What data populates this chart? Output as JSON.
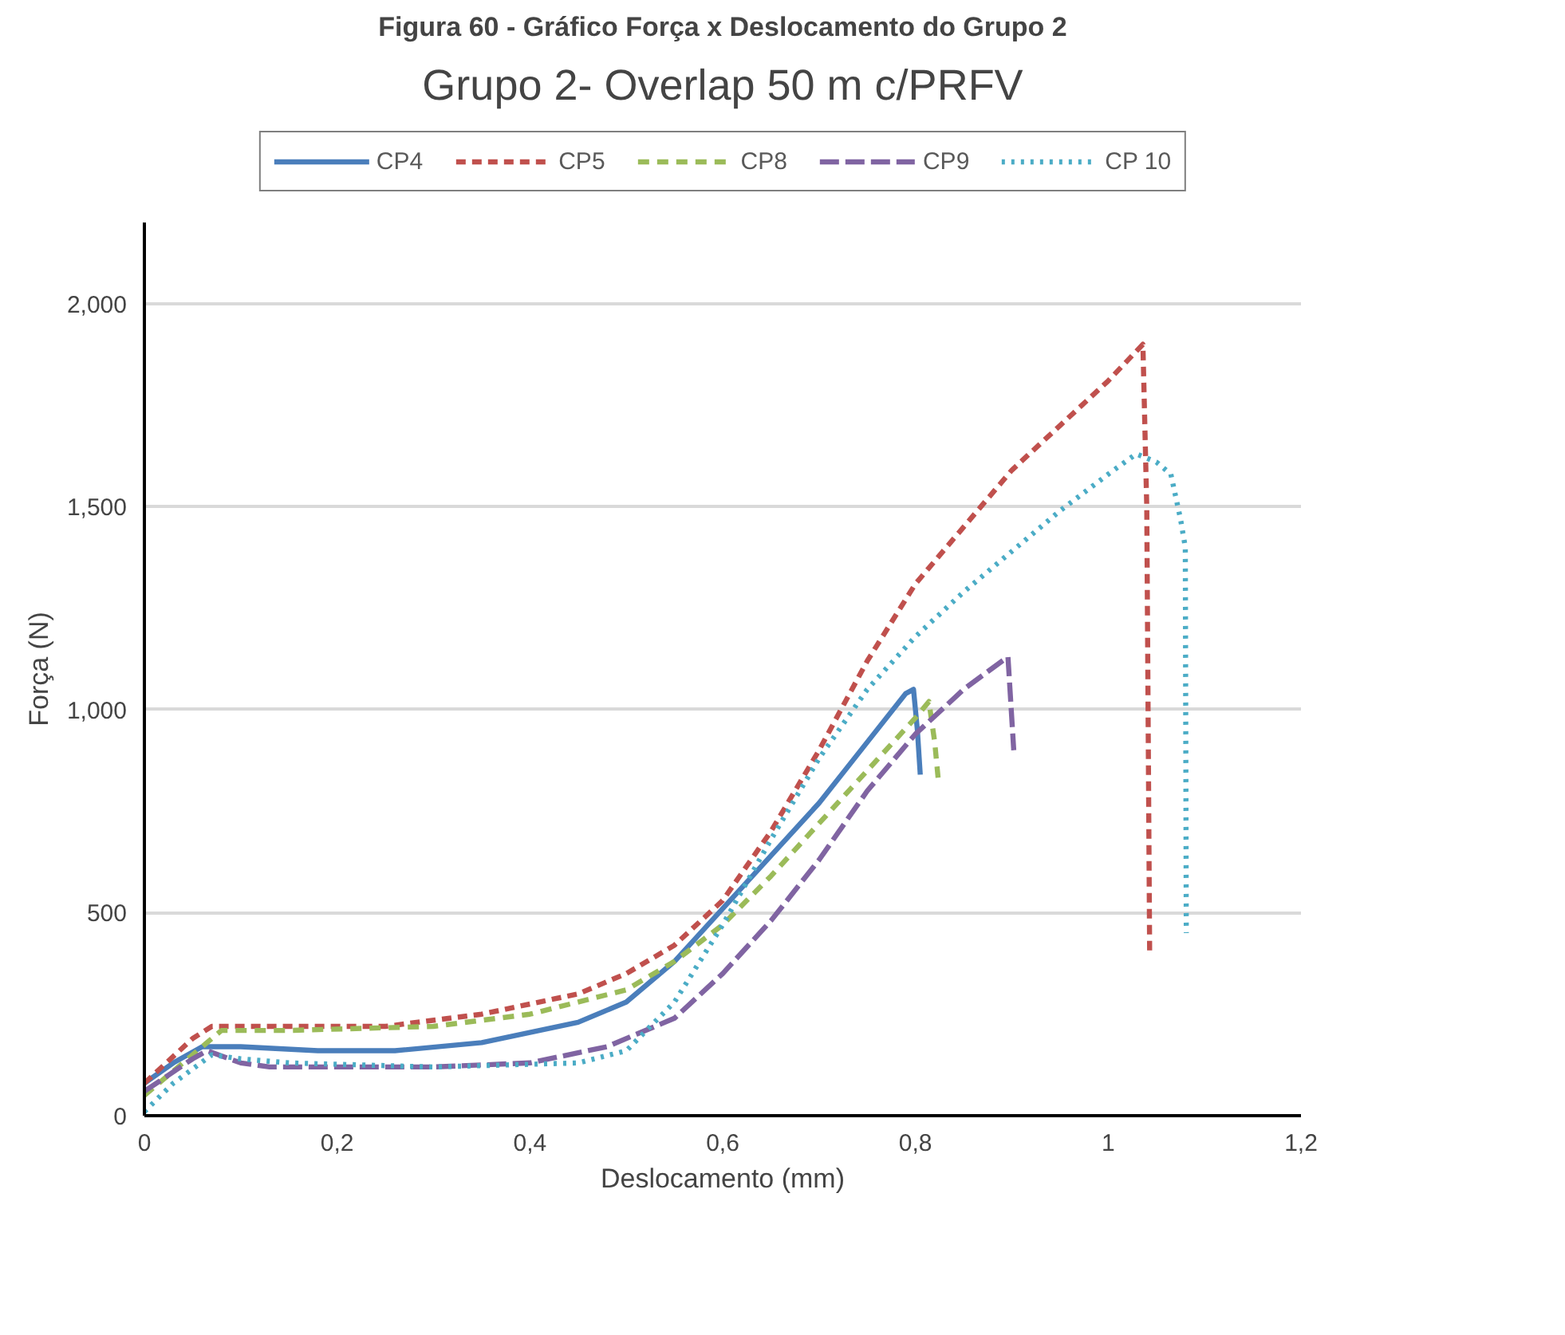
{
  "chart_data": {
    "type": "line",
    "title": "Grupo 2- Overlap 50 m c/PRFV",
    "annotations": [
      "Figura 60 - Gráfico Força x Deslocamento do Grupo 2"
    ],
    "xlabel": "Deslocamento (mm)",
    "ylabel": "Força (N)",
    "xlim": [
      0,
      1.2
    ],
    "xticks": [
      0,
      {
        "value": 0.2,
        "label": "0,2"
      },
      {
        "value": 0.4,
        "label": "0,4"
      },
      {
        "value": 0.6,
        "label": "0,6"
      },
      {
        "value": 0.8,
        "label": "0,8"
      },
      1,
      {
        "value": 1.2,
        "label": "1,2"
      }
    ],
    "ylim": [
      0,
      2200
    ],
    "yticks": [
      0,
      500,
      {
        "value": 1000,
        "label": "1,000"
      },
      {
        "value": 1500,
        "label": "1,500"
      },
      {
        "value": 2000,
        "label": "2,000"
      }
    ],
    "grid": "y",
    "legend": "top",
    "marker": "none",
    "series": [
      {
        "name": "CP4",
        "color": "#4a7ebb",
        "line_style": "solid",
        "x": [
          0,
          0.03,
          0.06,
          0.1,
          0.18,
          0.26,
          0.35,
          0.45,
          0.5,
          0.55,
          0.6,
          0.65,
          0.7,
          0.75,
          0.79,
          0.798,
          0.802,
          0.805
        ],
        "values": [
          80,
          130,
          170,
          170,
          160,
          160,
          180,
          230,
          280,
          380,
          510,
          640,
          770,
          920,
          1040,
          1050,
          950,
          840
        ]
      },
      {
        "name": "CP5",
        "color": "#c0504d",
        "line_style": "dashed",
        "x": [
          0,
          0.05,
          0.07,
          0.15,
          0.25,
          0.35,
          0.45,
          0.5,
          0.55,
          0.6,
          0.65,
          0.7,
          0.75,
          0.8,
          0.85,
          0.9,
          0.95,
          1.0,
          1.036,
          1.04,
          1.043
        ],
        "values": [
          80,
          190,
          220,
          220,
          220,
          250,
          300,
          350,
          420,
          530,
          700,
          900,
          1120,
          1310,
          1450,
          1590,
          1700,
          1810,
          1900,
          1500,
          400
        ]
      },
      {
        "name": "CP8",
        "color": "#9bbb59",
        "line_style": "dashed",
        "x": [
          0,
          0.05,
          0.08,
          0.15,
          0.3,
          0.4,
          0.5,
          0.55,
          0.6,
          0.65,
          0.7,
          0.75,
          0.8,
          0.814,
          0.82,
          0.824
        ],
        "values": [
          50,
          150,
          210,
          210,
          220,
          250,
          310,
          380,
          470,
          590,
          720,
          850,
          980,
          1020,
          920,
          820
        ]
      },
      {
        "name": "CP9",
        "color": "#8064a2",
        "line_style": "dashed",
        "x": [
          0,
          0.05,
          0.065,
          0.1,
          0.13,
          0.3,
          0.4,
          0.48,
          0.55,
          0.6,
          0.65,
          0.7,
          0.75,
          0.8,
          0.85,
          0.89,
          0.896,
          0.902
        ],
        "values": [
          60,
          140,
          160,
          130,
          120,
          120,
          130,
          170,
          240,
          350,
          480,
          630,
          800,
          940,
          1050,
          1120,
          1130,
          900
        ]
      },
      {
        "name": "CP 10",
        "color": "#4bacc6",
        "line_style": "dotted",
        "x": [
          0,
          0.03,
          0.07,
          0.1,
          0.15,
          0.3,
          0.45,
          0.5,
          0.55,
          0.6,
          0.65,
          0.7,
          0.75,
          0.8,
          0.85,
          0.9,
          0.95,
          1.0,
          1.029,
          1.05,
          1.065,
          1.075,
          1.08,
          1.081
        ],
        "values": [
          10,
          80,
          150,
          140,
          130,
          120,
          130,
          160,
          280,
          470,
          680,
          880,
          1050,
          1180,
          1290,
          1390,
          1490,
          1580,
          1630,
          1610,
          1580,
          1470,
          1400,
          450
        ]
      }
    ]
  }
}
